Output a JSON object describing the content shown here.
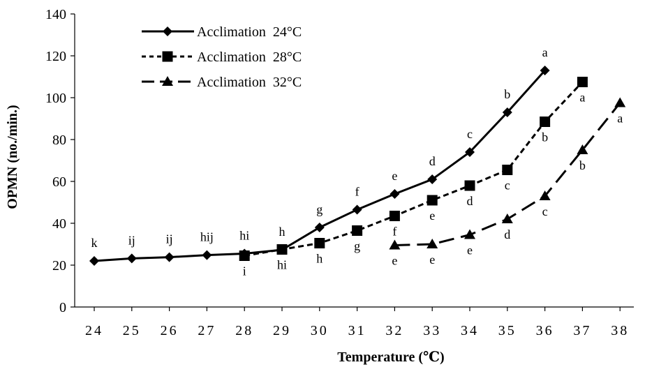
{
  "chart_data": {
    "type": "line",
    "title": "",
    "xlabel": "Temperature (℃)",
    "ylabel": "OPMN (no./min.)",
    "xlim": [
      24,
      38
    ],
    "ylim": [
      0,
      140
    ],
    "x_ticks": [
      24,
      25,
      26,
      27,
      28,
      29,
      30,
      31,
      32,
      33,
      34,
      35,
      36,
      37,
      38
    ],
    "y_ticks": [
      0,
      20,
      40,
      60,
      80,
      100,
      120,
      140
    ],
    "grid": false,
    "legend_position": "top-left",
    "series": [
      {
        "name": "Acclimation  24°C",
        "marker": "diamond",
        "line_style": "solid",
        "color": "#000000",
        "label_position": "above",
        "points": [
          {
            "x": 24,
            "y": 22,
            "label": "k"
          },
          {
            "x": 25,
            "y": 23.2,
            "label": "ij"
          },
          {
            "x": 26,
            "y": 23.8,
            "label": "ij"
          },
          {
            "x": 27,
            "y": 24.8,
            "label": "hij"
          },
          {
            "x": 28,
            "y": 25.5,
            "label": "hi"
          },
          {
            "x": 29,
            "y": 27.3,
            "label": "h"
          },
          {
            "x": 30,
            "y": 38,
            "label": "g"
          },
          {
            "x": 31,
            "y": 46.5,
            "label": "f"
          },
          {
            "x": 32,
            "y": 54,
            "label": "e"
          },
          {
            "x": 33,
            "y": 61,
            "label": "d"
          },
          {
            "x": 34,
            "y": 74,
            "label": "c"
          },
          {
            "x": 35,
            "y": 93,
            "label": "b"
          },
          {
            "x": 36,
            "y": 113,
            "label": "a"
          }
        ]
      },
      {
        "name": "Acclimation  28°C",
        "marker": "square",
        "line_style": "dashed",
        "color": "#000000",
        "label_position": "below",
        "points": [
          {
            "x": 28,
            "y": 24.5,
            "label": "i"
          },
          {
            "x": 29,
            "y": 27.5,
            "label": "hi"
          },
          {
            "x": 30,
            "y": 30.5,
            "label": "h"
          },
          {
            "x": 31,
            "y": 36.5,
            "label": "g"
          },
          {
            "x": 32,
            "y": 43.5,
            "label": "f"
          },
          {
            "x": 33,
            "y": 51,
            "label": "e"
          },
          {
            "x": 34,
            "y": 58,
            "label": "d"
          },
          {
            "x": 35,
            "y": 65.5,
            "label": "c"
          },
          {
            "x": 36,
            "y": 88.5,
            "label": "b"
          },
          {
            "x": 37,
            "y": 107.5,
            "label": "a"
          }
        ]
      },
      {
        "name": "Acclimation  32°C",
        "marker": "triangle",
        "line_style": "long-dash",
        "color": "#000000",
        "label_position": "below",
        "points": [
          {
            "x": 32,
            "y": 29.5,
            "label": "e"
          },
          {
            "x": 33,
            "y": 30,
            "label": "e"
          },
          {
            "x": 34,
            "y": 34.5,
            "label": "e"
          },
          {
            "x": 35,
            "y": 42,
            "label": "d"
          },
          {
            "x": 36,
            "y": 53,
            "label": "c"
          },
          {
            "x": 37,
            "y": 75,
            "label": "b"
          },
          {
            "x": 38,
            "y": 97.5,
            "label": "a"
          }
        ]
      }
    ]
  }
}
